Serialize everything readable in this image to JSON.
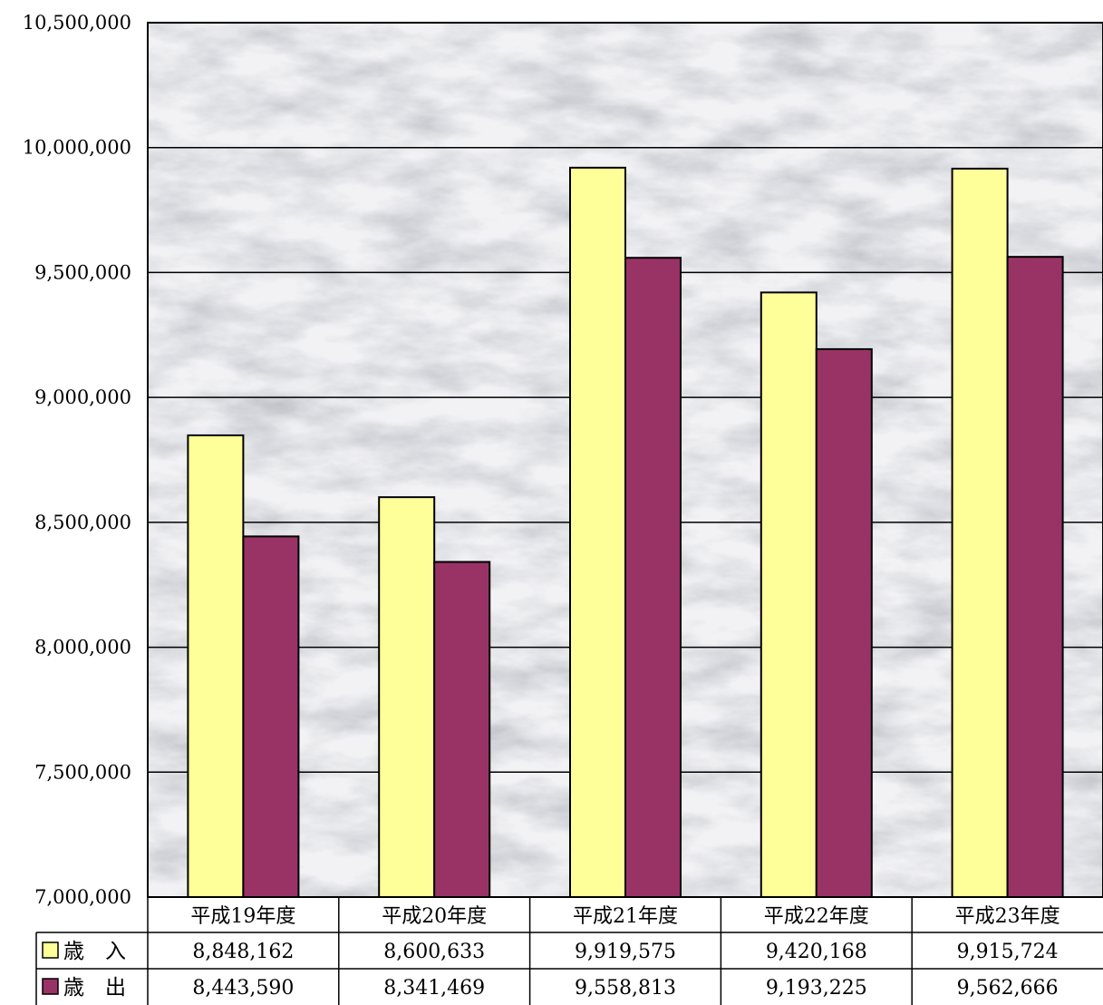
{
  "chart_data": {
    "type": "bar",
    "title": "",
    "xlabel": "",
    "ylabel": "",
    "ylim": [
      7000000,
      10500000
    ],
    "ytick_step": 500000,
    "yticks": [
      "7,000,000",
      "7,500,000",
      "8,000,000",
      "8,500,000",
      "9,000,000",
      "9,500,000",
      "10,000,000",
      "10,500,000"
    ],
    "grid": true,
    "legend": "data-table-left",
    "categories": [
      "平成19年度",
      "平成20年度",
      "平成21年度",
      "平成22年度",
      "平成23年度"
    ],
    "series": [
      {
        "name": "歳　入",
        "color": "#ffff99",
        "values": [
          8848162,
          8600633,
          9919575,
          9420168,
          9915724
        ],
        "value_labels": [
          "8,848,162",
          "8,600,633",
          "9,919,575",
          "9,420,168",
          "9,915,724"
        ]
      },
      {
        "name": "歳　出",
        "color": "#993366",
        "values": [
          8443590,
          8341469,
          9558813,
          9193225,
          9562666
        ],
        "value_labels": [
          "8,443,590",
          "8,341,469",
          "9,558,813",
          "9,193,225",
          "9,562,666"
        ]
      }
    ],
    "data_table": true,
    "background": "marble-texture"
  }
}
